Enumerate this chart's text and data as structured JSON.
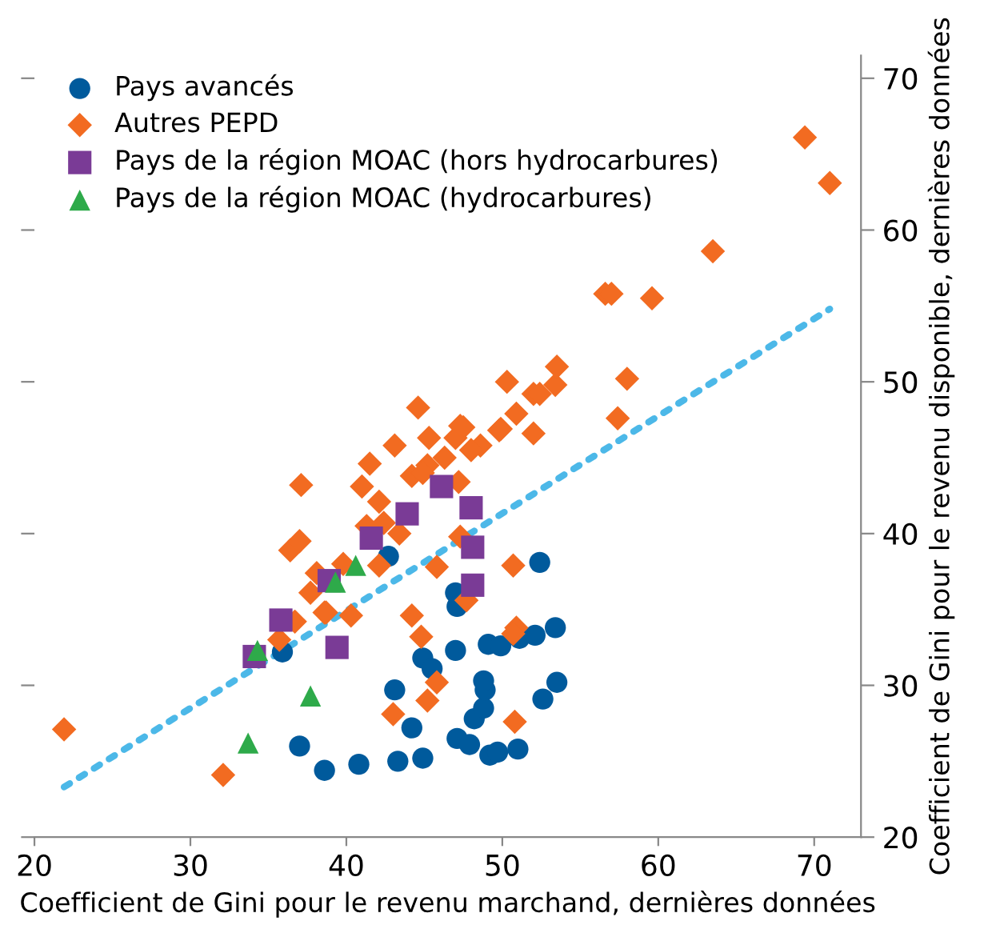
{
  "chart_data": {
    "type": "scatter",
    "xlabel": "Coefficient de Gini pour le revenu marchand, dernières données",
    "ylabel": "Coefficient de Gini pour le revenu disponible, dernières données",
    "xlim": [
      20,
      73
    ],
    "xticks": [
      20,
      30,
      40,
      50,
      60,
      70
    ],
    "ylim": [
      20,
      71.5
    ],
    "yticks": [
      20,
      30,
      40,
      50,
      60,
      70
    ],
    "legend": "top left",
    "grid": false,
    "series": [
      {
        "name": "Pays avancés",
        "color": "#005a9c",
        "marker": "circle",
        "x": [
          35.9,
          37.0,
          38.6,
          40.8,
          43.3,
          44.9,
          42.7,
          47.0,
          47.1,
          47.0,
          44.9,
          45.5,
          43.1,
          44.2,
          47.1,
          47.9,
          49.2,
          49.7,
          51.0,
          48.2,
          48.8,
          48.9,
          48.8,
          52.6,
          53.5,
          49.1,
          49.9,
          51.1,
          52.1,
          53.4,
          52.4
        ],
        "values": [
          32.2,
          26.0,
          24.4,
          24.8,
          25.0,
          25.2,
          38.5,
          36.1,
          35.2,
          32.3,
          31.8,
          31.1,
          29.7,
          27.2,
          26.5,
          26.1,
          25.4,
          25.6,
          25.8,
          27.8,
          28.5,
          29.7,
          30.3,
          29.1,
          30.2,
          32.7,
          32.6,
          33.1,
          33.3,
          33.8,
          38.1
        ]
      },
      {
        "name": "Autres PEPD",
        "color": "#f26b21",
        "marker": "diamond",
        "x": [
          37.1,
          36.4,
          37.0,
          37.7,
          38.6,
          36.7,
          35.7,
          21.9,
          32.1,
          50.3,
          52.0,
          53.4,
          50.9,
          49.9,
          52.0,
          44.6,
          45.3,
          47.3,
          43.1,
          41.5,
          47.0,
          48.6,
          46.3,
          44.2,
          41.0,
          42.1,
          45.2,
          47.2,
          43.4,
          42.1,
          45.8,
          47.3,
          40.3,
          38.7,
          44.2,
          44.8,
          50.7,
          50.9,
          50.7,
          45.8,
          45.2,
          43.0,
          50.8,
          47.7,
          42.4,
          41.3,
          47.5,
          53.5,
          52.4,
          49.8,
          56.6,
          69.4,
          71.0,
          63.5,
          57.0,
          59.6,
          58.0,
          57.4,
          39.8,
          38.1,
          44.9,
          48.0
        ],
        "values": [
          43.2,
          38.9,
          39.5,
          36.1,
          34.8,
          34.2,
          33.0,
          27.1,
          24.1,
          50.0,
          49.2,
          49.8,
          47.9,
          46.9,
          46.6,
          48.3,
          46.3,
          47.1,
          45.8,
          44.6,
          46.3,
          45.8,
          45.0,
          43.8,
          43.1,
          42.1,
          44.5,
          43.4,
          40.0,
          37.9,
          37.8,
          39.8,
          34.6,
          34.8,
          34.6,
          33.2,
          37.9,
          33.8,
          33.4,
          30.2,
          29.0,
          28.1,
          27.6,
          35.6,
          40.7,
          40.5,
          47.0,
          51.0,
          49.2,
          46.8,
          55.8,
          66.1,
          63.1,
          58.6,
          55.8,
          55.5,
          50.2,
          47.6,
          38.0,
          37.4,
          44.0,
          45.5
        ]
      },
      {
        "name": "Pays de la région MOAC (hors hydrocarbures)",
        "color": "#7a3b96",
        "marker": "square",
        "x": [
          46.1,
          48.0,
          43.9,
          41.6,
          48.1,
          38.9,
          48.1,
          39.4,
          35.8,
          34.1
        ],
        "values": [
          43.1,
          41.7,
          41.3,
          39.7,
          39.1,
          36.9,
          36.6,
          32.5,
          34.3,
          31.9
        ]
      },
      {
        "name": "Pays de la région MOAC (hydrocarbures)",
        "color": "#2eaa4a",
        "marker": "triangle",
        "x": [
          34.3,
          39.3,
          40.6,
          37.7,
          33.7
        ],
        "values": [
          32.3,
          36.8,
          37.9,
          29.3,
          26.2
        ]
      },
      {
        "type": "line",
        "color": "#4cb8e8",
        "line_style": "dotted",
        "marker": "none",
        "x": [
          21.9,
          71.0
        ],
        "values": [
          23.3,
          54.8
        ]
      }
    ]
  }
}
